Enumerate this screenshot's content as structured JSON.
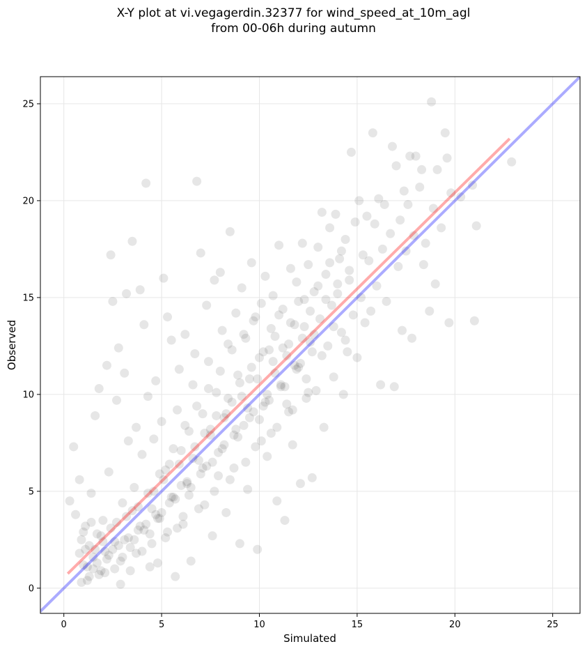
{
  "chart_data": {
    "type": "scatter",
    "title_line1": "X-Y plot at vi.vegagerdin.32377 for wind_speed_at_10m_agl",
    "title_line2": "from 00-06h during autumn",
    "xlabel": "Simulated",
    "ylabel": "Observed",
    "xlim": [
      -1.2,
      26.4
    ],
    "ylim": [
      -1.3,
      26.4
    ],
    "xticks": [
      0,
      5,
      10,
      15,
      20,
      25
    ],
    "yticks": [
      0,
      5,
      10,
      15,
      20,
      25
    ],
    "grid": true,
    "point_color": "#333333",
    "point_opacity": 0.12,
    "identity_line": {
      "name": "1:1 line",
      "color": "#0000ff",
      "from": [
        -1.2,
        -1.2
      ],
      "to": [
        26.4,
        26.4
      ]
    },
    "fit_line": {
      "name": "regression fit",
      "color": "#ff0000",
      "from": [
        0.2,
        0.75
      ],
      "to": [
        22.8,
        23.2
      ]
    },
    "points": [
      [
        0.3,
        4.5
      ],
      [
        0.5,
        7.3
      ],
      [
        0.6,
        3.8
      ],
      [
        0.8,
        5.6
      ],
      [
        0.9,
        2.5
      ],
      [
        1.0,
        1.2
      ],
      [
        1.1,
        3.2
      ],
      [
        1.2,
        0.4
      ],
      [
        1.3,
        2.2
      ],
      [
        1.4,
        4.9
      ],
      [
        1.5,
        1.6
      ],
      [
        1.6,
        8.9
      ],
      [
        1.7,
        2.8
      ],
      [
        1.8,
        10.3
      ],
      [
        1.9,
        0.9
      ],
      [
        2.0,
        3.5
      ],
      [
        2.1,
        1.9
      ],
      [
        2.2,
        11.5
      ],
      [
        2.3,
        6.0
      ],
      [
        2.4,
        17.2
      ],
      [
        2.5,
        14.8
      ],
      [
        2.6,
        2.4
      ],
      [
        2.7,
        9.7
      ],
      [
        2.8,
        12.4
      ],
      [
        2.9,
        0.2
      ],
      [
        3.0,
        4.4
      ],
      [
        3.1,
        11.1
      ],
      [
        3.2,
        15.2
      ],
      [
        3.3,
        7.6
      ],
      [
        3.4,
        2.1
      ],
      [
        3.5,
        17.9
      ],
      [
        3.6,
        5.2
      ],
      [
        3.7,
        8.3
      ],
      [
        3.8,
        3.0
      ],
      [
        3.9,
        15.4
      ],
      [
        4.0,
        6.9
      ],
      [
        4.1,
        13.6
      ],
      [
        4.2,
        20.9
      ],
      [
        4.3,
        9.9
      ],
      [
        4.4,
        1.1
      ],
      [
        4.5,
        4.1
      ],
      [
        4.6,
        7.7
      ],
      [
        4.7,
        10.7
      ],
      [
        4.8,
        3.6
      ],
      [
        4.9,
        5.9
      ],
      [
        5.0,
        8.6
      ],
      [
        5.1,
        16.0
      ],
      [
        5.2,
        2.6
      ],
      [
        5.3,
        14.0
      ],
      [
        5.4,
        6.4
      ],
      [
        5.5,
        12.8
      ],
      [
        5.6,
        4.7
      ],
      [
        5.7,
        0.6
      ],
      [
        5.8,
        9.2
      ],
      [
        5.9,
        11.3
      ],
      [
        6.0,
        7.1
      ],
      [
        6.1,
        3.3
      ],
      [
        6.2,
        13.1
      ],
      [
        6.3,
        5.5
      ],
      [
        6.4,
        8.1
      ],
      [
        6.5,
        1.4
      ],
      [
        6.6,
        10.5
      ],
      [
        6.7,
        12.1
      ],
      [
        6.8,
        21.0
      ],
      [
        6.9,
        6.6
      ],
      [
        7.0,
        17.3
      ],
      [
        7.1,
        9.0
      ],
      [
        7.2,
        4.3
      ],
      [
        7.3,
        14.6
      ],
      [
        7.4,
        11.7
      ],
      [
        7.5,
        7.9
      ],
      [
        7.6,
        2.7
      ],
      [
        7.7,
        15.9
      ],
      [
        7.8,
        10.1
      ],
      [
        7.9,
        5.8
      ],
      [
        8.0,
        16.3
      ],
      [
        8.1,
        13.3
      ],
      [
        8.2,
        8.8
      ],
      [
        8.3,
        3.9
      ],
      [
        8.4,
        12.6
      ],
      [
        8.5,
        18.4
      ],
      [
        8.6,
        9.6
      ],
      [
        8.7,
        6.2
      ],
      [
        8.8,
        14.2
      ],
      [
        8.9,
        11.0
      ],
      [
        9.0,
        2.3
      ],
      [
        9.1,
        15.5
      ],
      [
        9.2,
        8.4
      ],
      [
        9.3,
        12.9
      ],
      [
        9.4,
        5.1
      ],
      [
        9.5,
        10.8
      ],
      [
        9.6,
        16.8
      ],
      [
        9.7,
        13.8
      ],
      [
        9.8,
        7.3
      ],
      [
        9.9,
        2.0
      ],
      [
        10.0,
        11.9
      ],
      [
        10.1,
        14.7
      ],
      [
        10.2,
        9.4
      ],
      [
        10.3,
        16.1
      ],
      [
        10.4,
        6.8
      ],
      [
        10.5,
        12.3
      ],
      [
        10.6,
        8.0
      ],
      [
        10.7,
        15.1
      ],
      [
        10.8,
        13.0
      ],
      [
        10.9,
        4.5
      ],
      [
        11.0,
        17.7
      ],
      [
        11.1,
        10.4
      ],
      [
        11.2,
        14.4
      ],
      [
        11.3,
        3.5
      ],
      [
        11.4,
        12.0
      ],
      [
        11.5,
        9.1
      ],
      [
        11.6,
        16.5
      ],
      [
        11.7,
        7.4
      ],
      [
        11.8,
        13.6
      ],
      [
        11.9,
        15.8
      ],
      [
        12.0,
        11.4
      ],
      [
        12.1,
        5.4
      ],
      [
        12.2,
        17.8
      ],
      [
        12.3,
        14.9
      ],
      [
        12.4,
        9.8
      ],
      [
        12.5,
        16.7
      ],
      [
        12.6,
        12.7
      ],
      [
        12.7,
        5.7
      ],
      [
        12.8,
        15.3
      ],
      [
        12.9,
        10.2
      ],
      [
        13.0,
        17.6
      ],
      [
        13.1,
        13.9
      ],
      [
        13.2,
        19.4
      ],
      [
        13.3,
        8.3
      ],
      [
        13.4,
        16.2
      ],
      [
        13.5,
        12.5
      ],
      [
        13.6,
        18.6
      ],
      [
        13.7,
        14.6
      ],
      [
        13.8,
        10.9
      ],
      [
        13.9,
        19.3
      ],
      [
        14.0,
        15.7
      ],
      [
        14.1,
        17.0
      ],
      [
        14.2,
        13.2
      ],
      [
        14.3,
        10.0
      ],
      [
        14.4,
        18.0
      ],
      [
        14.5,
        12.2
      ],
      [
        14.6,
        16.4
      ],
      [
        14.7,
        22.5
      ],
      [
        14.8,
        14.1
      ],
      [
        14.9,
        18.9
      ],
      [
        15.0,
        11.9
      ],
      [
        15.1,
        20.0
      ],
      [
        15.2,
        15.0
      ],
      [
        15.3,
        17.2
      ],
      [
        15.4,
        13.7
      ],
      [
        15.5,
        19.2
      ],
      [
        15.6,
        16.9
      ],
      [
        15.7,
        14.3
      ],
      [
        15.8,
        23.5
      ],
      [
        15.9,
        18.8
      ],
      [
        16.0,
        15.6
      ],
      [
        16.1,
        20.1
      ],
      [
        16.2,
        10.5
      ],
      [
        16.3,
        17.5
      ],
      [
        16.4,
        19.8
      ],
      [
        16.5,
        14.8
      ],
      [
        16.7,
        18.3
      ],
      [
        16.8,
        22.8
      ],
      [
        16.9,
        10.4
      ],
      [
        17.0,
        21.8
      ],
      [
        17.1,
        16.6
      ],
      [
        17.2,
        19.0
      ],
      [
        17.3,
        13.3
      ],
      [
        17.4,
        20.5
      ],
      [
        17.5,
        17.4
      ],
      [
        17.6,
        19.8
      ],
      [
        17.7,
        22.3
      ],
      [
        17.8,
        12.9
      ],
      [
        17.9,
        18.2
      ],
      [
        18.0,
        22.3
      ],
      [
        18.2,
        20.7
      ],
      [
        18.3,
        21.6
      ],
      [
        18.4,
        16.7
      ],
      [
        18.5,
        17.8
      ],
      [
        18.7,
        14.3
      ],
      [
        18.8,
        25.1
      ],
      [
        18.9,
        19.6
      ],
      [
        19.0,
        15.7
      ],
      [
        19.1,
        21.6
      ],
      [
        19.3,
        18.6
      ],
      [
        19.5,
        23.5
      ],
      [
        19.6,
        22.2
      ],
      [
        19.7,
        13.7
      ],
      [
        19.8,
        20.4
      ],
      [
        20.3,
        20.2
      ],
      [
        20.9,
        20.8
      ],
      [
        21.0,
        13.8
      ],
      [
        21.1,
        18.7
      ],
      [
        22.9,
        22.0
      ],
      [
        0.8,
        1.8
      ],
      [
        1.0,
        2.9
      ],
      [
        1.2,
        1.1
      ],
      [
        1.4,
        3.4
      ],
      [
        1.6,
        2.0
      ],
      [
        1.8,
        0.7
      ],
      [
        2.0,
        2.4
      ],
      [
        2.2,
        1.5
      ],
      [
        2.4,
        3.1
      ],
      [
        2.6,
        1.0
      ],
      [
        2.8,
        2.2
      ],
      [
        3.0,
        1.6
      ],
      [
        3.2,
        3.7
      ],
      [
        3.4,
        0.9
      ],
      [
        3.6,
        2.5
      ],
      [
        3.8,
        4.2
      ],
      [
        4.0,
        1.9
      ],
      [
        4.2,
        3.3
      ],
      [
        4.4,
        2.8
      ],
      [
        4.6,
        5.0
      ],
      [
        4.8,
        1.3
      ],
      [
        5.0,
        3.9
      ],
      [
        5.2,
        6.1
      ],
      [
        5.4,
        4.4
      ],
      [
        5.6,
        7.2
      ],
      [
        5.8,
        3.1
      ],
      [
        6.0,
        5.3
      ],
      [
        6.2,
        8.4
      ],
      [
        6.4,
        4.8
      ],
      [
        6.6,
        6.7
      ],
      [
        6.8,
        9.4
      ],
      [
        7.0,
        5.9
      ],
      [
        7.2,
        8.0
      ],
      [
        7.4,
        10.3
      ],
      [
        7.6,
        6.5
      ],
      [
        7.8,
        8.9
      ],
      [
        8.0,
        11.2
      ],
      [
        8.2,
        7.4
      ],
      [
        8.4,
        9.8
      ],
      [
        8.6,
        12.3
      ],
      [
        8.8,
        8.2
      ],
      [
        9.0,
        10.6
      ],
      [
        9.2,
        13.1
      ],
      [
        9.4,
        9.3
      ],
      [
        9.6,
        11.4
      ],
      [
        9.8,
        14.0
      ],
      [
        10.0,
        8.7
      ],
      [
        10.2,
        12.2
      ],
      [
        10.4,
        10.0
      ],
      [
        10.6,
        13.4
      ],
      [
        10.8,
        11.1
      ],
      [
        11.0,
        14.1
      ],
      [
        11.2,
        12.4
      ],
      [
        11.4,
        9.5
      ],
      [
        11.6,
        13.7
      ],
      [
        11.8,
        11.5
      ],
      [
        12.0,
        14.8
      ],
      [
        12.2,
        12.9
      ],
      [
        12.4,
        10.8
      ],
      [
        12.6,
        14.3
      ],
      [
        12.8,
        13.1
      ],
      [
        13.0,
        15.6
      ],
      [
        13.2,
        12.0
      ],
      [
        13.4,
        14.9
      ],
      [
        13.6,
        16.8
      ],
      [
        13.8,
        13.5
      ],
      [
        14.0,
        15.2
      ],
      [
        14.2,
        17.4
      ],
      [
        14.4,
        12.8
      ],
      [
        14.6,
        15.9
      ],
      [
        0.9,
        0.3
      ],
      [
        1.3,
        0.6
      ],
      [
        1.7,
        1.3
      ],
      [
        2.1,
        0.8
      ],
      [
        2.5,
        2.0
      ],
      [
        2.9,
        1.4
      ],
      [
        3.3,
        2.6
      ],
      [
        3.7,
        1.8
      ],
      [
        4.1,
        3.0
      ],
      [
        4.5,
        2.3
      ],
      [
        4.9,
        3.6
      ],
      [
        5.3,
        2.9
      ],
      [
        5.7,
        4.6
      ],
      [
        6.1,
        3.7
      ],
      [
        6.5,
        5.2
      ],
      [
        6.9,
        4.1
      ],
      [
        7.3,
        6.3
      ],
      [
        7.7,
        5.0
      ],
      [
        8.1,
        7.2
      ],
      [
        8.5,
        5.6
      ],
      [
        8.9,
        7.8
      ],
      [
        9.3,
        6.5
      ],
      [
        9.7,
        9.1
      ],
      [
        10.1,
        7.6
      ],
      [
        10.5,
        9.7
      ],
      [
        10.9,
        8.3
      ],
      [
        11.3,
        10.4
      ],
      [
        11.7,
        9.2
      ],
      [
        12.1,
        11.6
      ],
      [
        12.5,
        10.1
      ],
      [
        1.1,
        2.0
      ],
      [
        1.5,
        1.0
      ],
      [
        1.9,
        2.7
      ],
      [
        2.3,
        1.7
      ],
      [
        2.7,
        3.4
      ],
      [
        3.1,
        2.5
      ],
      [
        3.5,
        4.0
      ],
      [
        3.9,
        3.2
      ],
      [
        4.3,
        4.9
      ],
      [
        4.7,
        3.8
      ],
      [
        5.1,
        5.6
      ],
      [
        5.5,
        4.7
      ],
      [
        5.9,
        6.4
      ],
      [
        6.3,
        5.4
      ],
      [
        6.7,
        7.3
      ],
      [
        7.1,
        6.2
      ],
      [
        7.5,
        8.2
      ],
      [
        7.9,
        7.0
      ],
      [
        8.3,
        9.0
      ],
      [
        8.7,
        7.9
      ],
      [
        9.1,
        9.9
      ],
      [
        9.5,
        8.8
      ],
      [
        9.9,
        10.8
      ],
      [
        10.3,
        9.6
      ],
      [
        10.7,
        11.7
      ],
      [
        11.1,
        10.5
      ],
      [
        11.5,
        12.6
      ],
      [
        11.9,
        11.3
      ],
      [
        12.3,
        13.5
      ],
      [
        12.7,
        12.2
      ]
    ]
  }
}
